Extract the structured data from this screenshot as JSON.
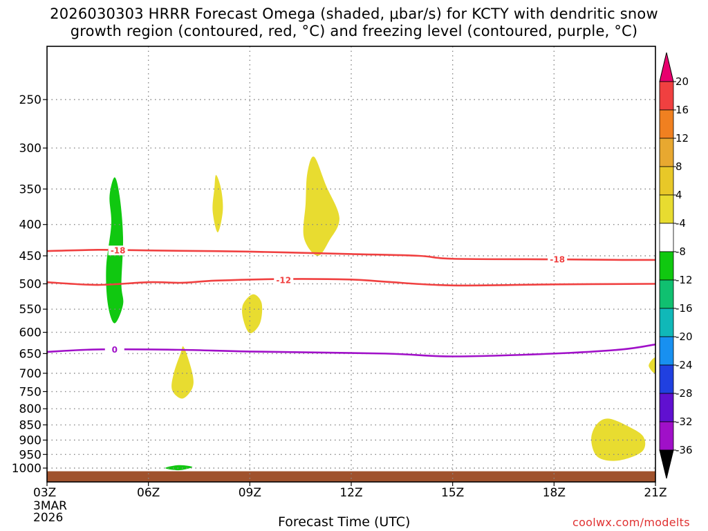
{
  "title": {
    "line1": "2026030303 HRRR Forecast Omega (shaded, μbar/s) for KCTY with dendritic snow",
    "line2": "growth region (contoured, red, °C) and freezing level (contoured, purple, °C)"
  },
  "xlabel": "Forecast Time (UTC)",
  "credit": "coolwx.com/modelts",
  "chart_data": {
    "type": "heatmap",
    "x_range_hours": [
      0,
      18
    ],
    "y_axis": {
      "scale": "log-pressure",
      "inverted": true,
      "ticks": [
        250,
        300,
        350,
        400,
        450,
        500,
        550,
        600,
        650,
        700,
        750,
        800,
        850,
        900,
        950,
        1000
      ]
    },
    "x_ticks": [
      {
        "hour": 0,
        "label": "03Z",
        "sub": [
          "3MAR",
          "2026"
        ]
      },
      {
        "hour": 3,
        "label": "06Z"
      },
      {
        "hour": 6,
        "label": "09Z"
      },
      {
        "hour": 9,
        "label": "12Z"
      },
      {
        "hour": 12,
        "label": "15Z"
      },
      {
        "hour": 15,
        "label": "18Z"
      },
      {
        "hour": 18,
        "label": "21Z"
      }
    ],
    "colorbar": {
      "labels": [
        "20",
        "16",
        "12",
        "8",
        "4",
        "-4",
        "-8",
        "-12",
        "-16",
        "-20",
        "-24",
        "-28",
        "-32",
        "-36"
      ],
      "colors": [
        "#e8006e",
        "#f04040",
        "#f08020",
        "#e8a830",
        "#e8c828",
        "#e8dc30",
        "#ffffff",
        "#10c810",
        "#10c070",
        "#10b8b8",
        "#1890f0",
        "#2040e0",
        "#6010d0",
        "#a010c8",
        "#a8a8a8",
        "#000000"
      ]
    },
    "contours": [
      {
        "name": "-18 C isotherm",
        "label": "-18",
        "color": "#f04040",
        "points": [
          [
            0,
            442
          ],
          [
            1.5,
            440
          ],
          [
            3,
            441
          ],
          [
            6,
            443
          ],
          [
            9,
            447
          ],
          [
            11,
            450
          ],
          [
            12,
            455
          ],
          [
            15,
            456
          ],
          [
            17,
            457
          ],
          [
            18,
            457
          ]
        ],
        "label_at": [
          [
            2.1,
            441
          ],
          [
            15.1,
            456
          ]
        ]
      },
      {
        "name": "-12 C isotherm",
        "label": "-12",
        "color": "#f04040",
        "points": [
          [
            0,
            497
          ],
          [
            1.5,
            502
          ],
          [
            3,
            497
          ],
          [
            4,
            498
          ],
          [
            5,
            494
          ],
          [
            7,
            491
          ],
          [
            9,
            492
          ],
          [
            10,
            496
          ],
          [
            12,
            503
          ],
          [
            15,
            501
          ],
          [
            18,
            500
          ]
        ],
        "label_at": [
          [
            7.0,
            493
          ]
        ]
      },
      {
        "name": "0 C freezing level",
        "label": "0",
        "color": "#a010c8",
        "points": [
          [
            0,
            646
          ],
          [
            1.5,
            640
          ],
          [
            4,
            641
          ],
          [
            6,
            645
          ],
          [
            10,
            650
          ],
          [
            12,
            657
          ],
          [
            15,
            650
          ],
          [
            17,
            640
          ],
          [
            18,
            628
          ]
        ],
        "label_at": [
          [
            2.0,
            640
          ]
        ]
      }
    ],
    "regions": [
      {
        "name": "omega -4 to -8 (green) 350-580 hPa at 05Z",
        "value": -6,
        "color": "#10c810",
        "points": [
          [
            2.0,
            335
          ],
          [
            2.15,
            360
          ],
          [
            2.25,
            420
          ],
          [
            2.2,
            500
          ],
          [
            2.25,
            540
          ],
          [
            2.0,
            580
          ],
          [
            1.8,
            540
          ],
          [
            1.75,
            470
          ],
          [
            1.9,
            400
          ],
          [
            1.85,
            360
          ]
        ]
      },
      {
        "name": "omega -4 to -8 (green) near 1000 hPa at 07Z",
        "value": -6,
        "color": "#10c810",
        "points": [
          [
            3.5,
            1000
          ],
          [
            3.9,
            989
          ],
          [
            4.3,
            996
          ],
          [
            3.9,
            1008
          ]
        ]
      },
      {
        "name": "omega 4 to 8 (yellow) 330-410 hPa at 08Z",
        "value": 6,
        "color": "#e8dc30",
        "points": [
          [
            5.0,
            332
          ],
          [
            5.15,
            350
          ],
          [
            5.2,
            380
          ],
          [
            5.05,
            412
          ],
          [
            4.9,
            380
          ],
          [
            4.95,
            350
          ]
        ]
      },
      {
        "name": "omega 4 to 8 (yellow) 310-450 hPa at 11Z",
        "value": 6,
        "color": "#e8dc30",
        "points": [
          [
            7.9,
            310
          ],
          [
            8.25,
            345
          ],
          [
            8.65,
            390
          ],
          [
            8.35,
            425
          ],
          [
            8.0,
            450
          ],
          [
            7.6,
            420
          ],
          [
            7.65,
            370
          ],
          [
            7.7,
            330
          ]
        ]
      },
      {
        "name": "omega 4 to 8 (yellow) 520-600 hPa at 09Z",
        "value": 6,
        "color": "#e8dc30",
        "points": [
          [
            6.1,
            520
          ],
          [
            6.35,
            538
          ],
          [
            6.3,
            580
          ],
          [
            6.0,
            602
          ],
          [
            5.8,
            570
          ],
          [
            5.8,
            540
          ]
        ]
      },
      {
        "name": "omega 4 to 8 (yellow) 640-770 hPa at 07Z",
        "value": 6,
        "color": "#e8dc30",
        "points": [
          [
            4.05,
            635
          ],
          [
            4.3,
            700
          ],
          [
            4.3,
            740
          ],
          [
            4.0,
            770
          ],
          [
            3.7,
            745
          ],
          [
            3.75,
            700
          ],
          [
            3.95,
            650
          ]
        ]
      },
      {
        "name": "omega 4 to 8 (yellow) 830-970 hPa at 20Z",
        "value": 6,
        "color": "#e8dc30",
        "points": [
          [
            16.6,
            830
          ],
          [
            17.2,
            855
          ],
          [
            17.65,
            890
          ],
          [
            17.6,
            940
          ],
          [
            16.9,
            972
          ],
          [
            16.3,
            960
          ],
          [
            16.1,
            900
          ],
          [
            16.25,
            850
          ]
        ]
      },
      {
        "name": "omega 4 to 8 (yellow) at edge 21Z near 680 hPa",
        "value": 6,
        "color": "#e8dc30",
        "points": [
          [
            17.8,
            680
          ],
          [
            18.0,
            660
          ],
          [
            18.0,
            700
          ]
        ]
      }
    ],
    "ground": {
      "color": "#a0522d",
      "pressure_top": 1012
    }
  }
}
